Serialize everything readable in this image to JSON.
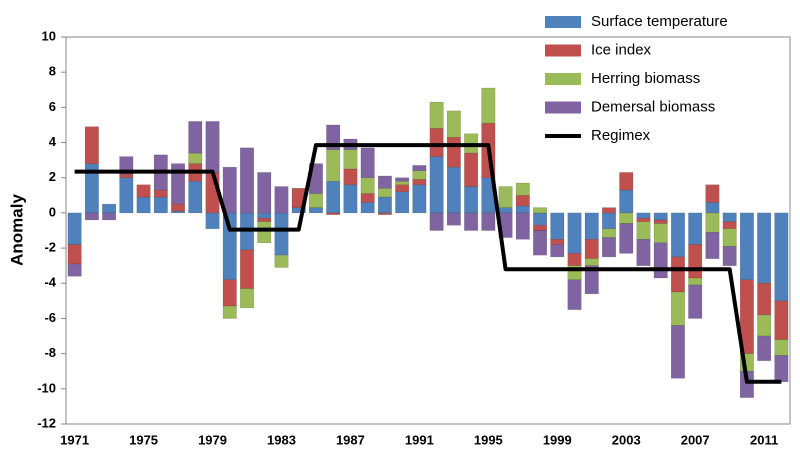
{
  "chart_data": {
    "type": "stacked_bar",
    "ylabel": "Anomaly",
    "categories": [
      "1971",
      null,
      null,
      null,
      "1975",
      null,
      null,
      null,
      "1979",
      null,
      null,
      null,
      "1983",
      null,
      null,
      null,
      "1987",
      null,
      null,
      null,
      "1991",
      null,
      null,
      null,
      "1995",
      null,
      null,
      null,
      "1999",
      null,
      null,
      null,
      "2003",
      null,
      null,
      null,
      "2007",
      null,
      null,
      null,
      "2011",
      null
    ],
    "series": [
      {
        "name": "Surface temperature",
        "color": "#4f81bd",
        "values": [
          -1.8,
          2.8,
          0.5,
          2.0,
          0.9,
          0.9,
          0.1,
          1.8,
          -0.9,
          -3.8,
          -2.1,
          -0.3,
          -2.4,
          0.3,
          0.3,
          1.8,
          1.6,
          0.6,
          0.9,
          1.2,
          1.6,
          3.2,
          2.6,
          1.5,
          2.0,
          0.3,
          0.4,
          -0.7,
          -1.5,
          -2.3,
          -1.5,
          -0.9,
          1.3,
          -0.3,
          -0.4,
          -2.5,
          -1.8,
          0.6,
          -0.5,
          -3.8,
          -4.0,
          -5.0
        ]
      },
      {
        "name": "Ice index",
        "color": "#c0504d",
        "values": [
          -1.1,
          2.1,
          0,
          0.2,
          0.7,
          0.4,
          0.4,
          1.0,
          2.3,
          -1.5,
          -2.2,
          -0.2,
          0,
          1.1,
          0,
          -0.1,
          0.9,
          0.5,
          -0.1,
          0.4,
          0.3,
          1.6,
          1.7,
          1.9,
          3.1,
          0,
          0.6,
          -0.3,
          -0.3,
          -0.7,
          -1.1,
          0.3,
          1.0,
          -0.2,
          -0.2,
          -2.0,
          -1.9,
          1.0,
          -0.4,
          -4.2,
          -1.8,
          -2.2
        ]
      },
      {
        "name": "Herring biomass",
        "color": "#9bbb59",
        "values": [
          0,
          0,
          0,
          0,
          0,
          0,
          0,
          0.6,
          0,
          -0.7,
          -1.1,
          -1.2,
          -0.7,
          0,
          0.8,
          1.8,
          1.1,
          0.9,
          0.5,
          0.2,
          0.5,
          1.5,
          1.5,
          1.1,
          2.0,
          1.2,
          0.7,
          0.3,
          0,
          -0.8,
          -0.4,
          -0.5,
          -0.6,
          -1.0,
          -1.1,
          -1.9,
          -0.4,
          -1.1,
          -1.0,
          -1.0,
          -1.2,
          -0.9
        ]
      },
      {
        "name": "Demersal biomass",
        "color": "#8064a2",
        "values": [
          -0.7,
          -0.4,
          -0.4,
          1.0,
          0,
          2.0,
          2.3,
          1.8,
          2.9,
          2.6,
          3.7,
          2.3,
          1.5,
          0,
          1.7,
          1.4,
          0.6,
          1.7,
          0.7,
          0.2,
          0.3,
          -1.0,
          -0.7,
          -1.0,
          -1.0,
          -1.4,
          -1.5,
          -1.4,
          -0.7,
          -1.7,
          -1.6,
          -1.1,
          -1.7,
          -1.5,
          -2.0,
          -3.0,
          -1.9,
          -1.5,
          -1.1,
          -1.5,
          -1.4,
          -1.5
        ]
      },
      {
        "name": "Regimex",
        "color": "#000000",
        "kind": "line",
        "values": [
          2.35,
          2.35,
          2.35,
          2.35,
          2.35,
          2.35,
          2.35,
          2.35,
          2.35,
          -0.95,
          -0.95,
          -0.95,
          -0.95,
          -0.95,
          3.85,
          3.85,
          3.85,
          3.85,
          3.85,
          3.85,
          3.85,
          3.85,
          3.85,
          3.85,
          3.85,
          -3.2,
          -3.2,
          -3.2,
          -3.2,
          -3.2,
          -3.2,
          -3.2,
          -3.2,
          -3.2,
          -3.2,
          -3.2,
          -3.2,
          -3.2,
          -3.2,
          -9.6,
          -9.6,
          -9.6
        ]
      }
    ],
    "ylim": [
      -12,
      10
    ],
    "yticks": [
      -12,
      -10,
      -8,
      -6,
      -4,
      -2,
      0,
      2,
      4,
      6,
      8,
      10
    ]
  }
}
